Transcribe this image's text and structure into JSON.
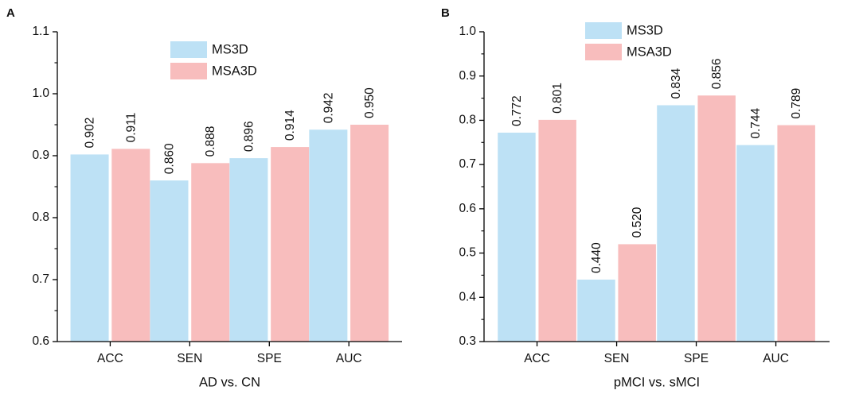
{
  "colors": {
    "ms3d": "#bde1f5",
    "msa3d": "#f8bdbd",
    "axis": "#000000"
  },
  "chart_data": [
    {
      "panel_label": "A",
      "type": "bar",
      "title": "",
      "xlabel": "AD vs. CN",
      "ylabel": "",
      "categories": [
        "ACC",
        "SEN",
        "SPE",
        "AUC"
      ],
      "ylim": [
        0.6,
        1.1
      ],
      "yticks": [
        0.6,
        0.7,
        0.8,
        0.9,
        1.0,
        1.1
      ],
      "ytick_labels": [
        "0.6",
        "0.7",
        "0.8",
        "0.9",
        "1.0",
        "1.1"
      ],
      "legend": [
        "MS3D",
        "MSA3D"
      ],
      "legend_position": "top-center",
      "series": [
        {
          "name": "MS3D",
          "values": [
            0.902,
            0.86,
            0.896,
            0.942
          ],
          "labels": [
            "0.902",
            "0.860",
            "0.896",
            "0.942"
          ]
        },
        {
          "name": "MSA3D",
          "values": [
            0.911,
            0.888,
            0.914,
            0.95
          ],
          "labels": [
            "0.911",
            "0.888",
            "0.914",
            "0.950"
          ]
        }
      ]
    },
    {
      "panel_label": "B",
      "type": "bar",
      "title": "",
      "xlabel": "pMCI vs. sMCI",
      "ylabel": "",
      "categories": [
        "ACC",
        "SEN",
        "SPE",
        "AUC"
      ],
      "ylim": [
        0.3,
        1.0
      ],
      "yticks": [
        0.3,
        0.4,
        0.5,
        0.6,
        0.7,
        0.8,
        0.9,
        1.0
      ],
      "ytick_labels": [
        "0.3",
        "0.4",
        "0.5",
        "0.6",
        "0.7",
        "0.8",
        "0.9",
        "1.0"
      ],
      "legend": [
        "MS3D",
        "MSA3D"
      ],
      "legend_position": "top-center",
      "series": [
        {
          "name": "MS3D",
          "values": [
            0.772,
            0.44,
            0.834,
            0.744
          ],
          "labels": [
            "0.772",
            "0.440",
            "0.834",
            "0.744"
          ]
        },
        {
          "name": "MSA3D",
          "values": [
            0.801,
            0.52,
            0.856,
            0.789
          ],
          "labels": [
            "0.801",
            "0.520",
            "0.856",
            "0.789"
          ]
        }
      ]
    }
  ]
}
